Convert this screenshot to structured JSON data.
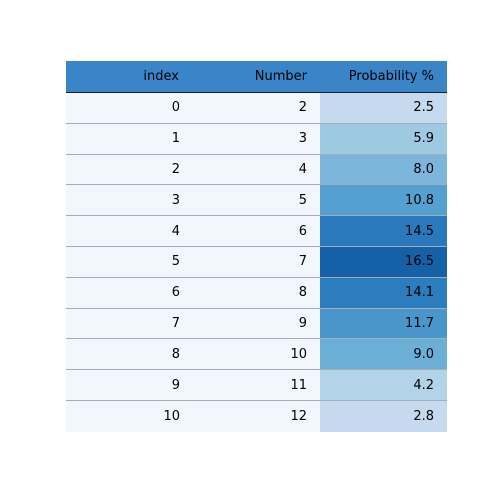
{
  "chart_data": {
    "type": "table",
    "columns": [
      "index",
      "Number",
      "Probability %"
    ],
    "header_color": "#3a84c8",
    "body_color": "#f2f7fd",
    "colormap": "Blues",
    "rows": [
      {
        "index": "0",
        "number": "2",
        "probability": "2.5",
        "value": 2.5,
        "color": "#c6daef"
      },
      {
        "index": "1",
        "number": "3",
        "probability": "5.9",
        "value": 5.9,
        "color": "#9ecae1"
      },
      {
        "index": "2",
        "number": "4",
        "probability": "8.0",
        "value": 8.0,
        "color": "#7cb6db"
      },
      {
        "index": "3",
        "number": "5",
        "probability": "10.8",
        "value": 10.8,
        "color": "#54a0d0"
      },
      {
        "index": "4",
        "number": "6",
        "probability": "14.5",
        "value": 14.5,
        "color": "#2a79bd"
      },
      {
        "index": "5",
        "number": "7",
        "probability": "16.5",
        "value": 16.5,
        "color": "#1461a8"
      },
      {
        "index": "6",
        "number": "8",
        "probability": "14.1",
        "value": 14.1,
        "color": "#2c7dbd"
      },
      {
        "index": "7",
        "number": "9",
        "probability": "11.7",
        "value": 11.7,
        "color": "#4896ca"
      },
      {
        "index": "8",
        "number": "10",
        "probability": "9.0",
        "value": 9.0,
        "color": "#6baed6"
      },
      {
        "index": "9",
        "number": "11",
        "probability": "4.2",
        "value": 4.2,
        "color": "#b2d3e8"
      },
      {
        "index": "10",
        "number": "12",
        "probability": "2.8",
        "value": 2.8,
        "color": "#c6daef"
      }
    ]
  }
}
